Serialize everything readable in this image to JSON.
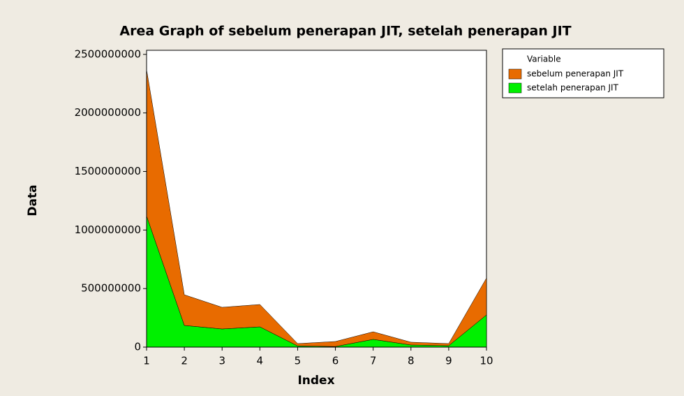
{
  "chart_data": {
    "type": "area",
    "stacked": true,
    "title": "Area Graph of sebelum penerapan JIT, setelah penerapan JIT",
    "x_label": "Index",
    "y_label": "Data",
    "legend_title": "Variable",
    "legend": "right",
    "x": [
      1,
      2,
      3,
      4,
      5,
      6,
      7,
      8,
      9,
      10
    ],
    "series": [
      {
        "name": "sebelum penerapan JIT",
        "color": "#e86b00",
        "values": [
          1250000000,
          262000000,
          185000000,
          191000000,
          20000000,
          43000000,
          65000000,
          24000000,
          18000000,
          315000000
        ]
      },
      {
        "name": "setelah penerapan JIT",
        "color": "#00f000",
        "values": [
          1120000000,
          185000000,
          155000000,
          173000000,
          10000000,
          5000000,
          66000000,
          18000000,
          12000000,
          275000000
        ]
      }
    ],
    "xlim": [
      1,
      10
    ],
    "xticks": [
      1,
      2,
      3,
      4,
      5,
      6,
      7,
      8,
      9,
      10
    ],
    "ylim": [
      0,
      2535000000
    ],
    "yticks": [
      0,
      500000000,
      1000000000,
      1500000000,
      2000000000,
      2500000000
    ]
  }
}
